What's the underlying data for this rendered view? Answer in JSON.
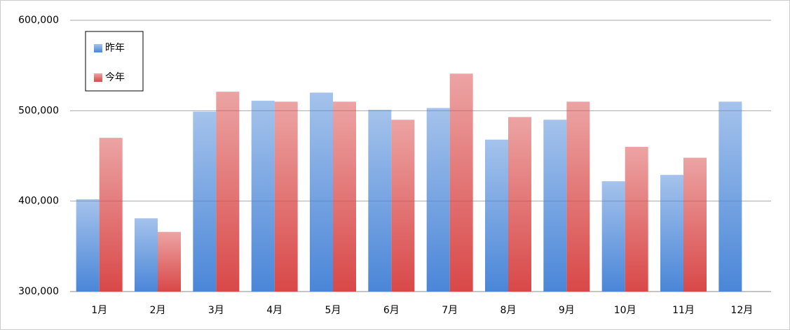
{
  "chart_data": {
    "type": "bar",
    "categories": [
      "1月",
      "2月",
      "3月",
      "4月",
      "5月",
      "6月",
      "7月",
      "8月",
      "9月",
      "10月",
      "11月",
      "12月"
    ],
    "series": [
      {
        "name": "昨年",
        "color": "#4a86d8",
        "values": [
          402000,
          381000,
          499000,
          511000,
          520000,
          501000,
          503000,
          468000,
          490000,
          422000,
          429000,
          510000
        ]
      },
      {
        "name": "今年",
        "color": "#d94848",
        "values": [
          470000,
          366000,
          521000,
          510000,
          510000,
          490000,
          541000,
          493000,
          510000,
          460000,
          448000,
          null
        ]
      }
    ],
    "ylim": [
      300000,
      600000
    ],
    "yticks": [
      {
        "value": 300000,
        "label": "300,000"
      },
      {
        "value": 400000,
        "label": "400,000"
      },
      {
        "value": 500000,
        "label": "500,000"
      },
      {
        "value": 600000,
        "label": "600,000"
      }
    ],
    "grid": true,
    "legend": "top-left"
  }
}
